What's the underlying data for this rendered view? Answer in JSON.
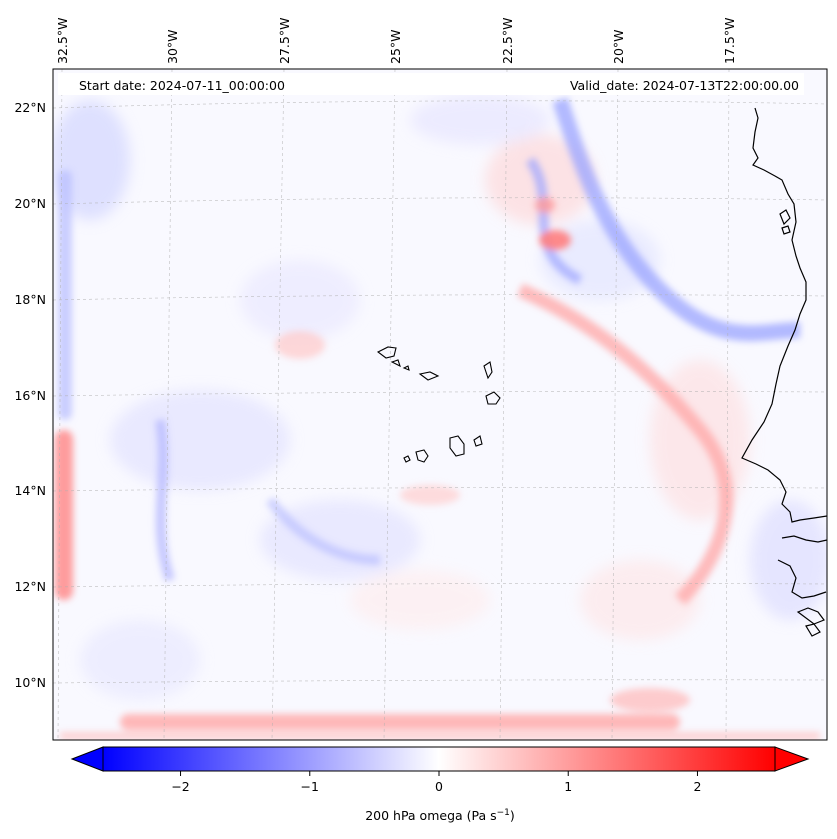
{
  "map": {
    "start_date": "Start date: 2024-07-11_00:00:00",
    "valid_date": "Valid_date: 2024-07-13T22:00:00.00",
    "lon_labels": [
      "32.5°W",
      "30°W",
      "27.5°W",
      "25°W",
      "22.5°W",
      "20°W",
      "17.5°W"
    ],
    "lat_labels": [
      "22°N",
      "20°N",
      "18°N",
      "16°N",
      "14°N",
      "12°N",
      "10°N"
    ],
    "coastline_color": "#000000",
    "gridline_color": "#b0b0b0",
    "field_colors": {
      "negative": "#0000ff",
      "neutral": "#ffffff",
      "positive": "#ff0000"
    }
  },
  "colorbar": {
    "ticks": [
      -2,
      -1,
      0,
      1,
      2
    ],
    "tick_labels": [
      "−2",
      "−1",
      "0",
      "1",
      "2"
    ],
    "range": [
      -2.6,
      2.6
    ],
    "label_prefix": "200 hPa omega (Pa s",
    "label_exp": "−1",
    "label_suffix": ")",
    "cmap": "bwr",
    "extend": "both"
  }
}
